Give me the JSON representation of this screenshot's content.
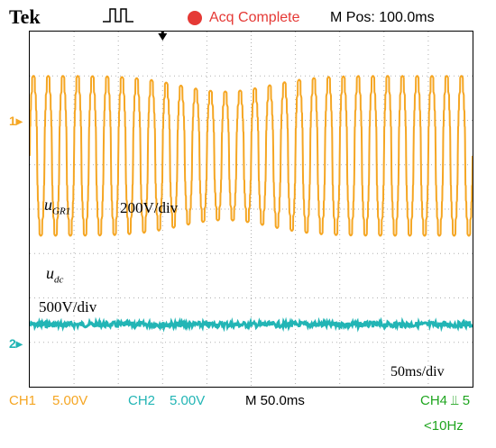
{
  "header": {
    "brand": "Tek",
    "trigger_icon": "trigger-pulse-icon",
    "acq_status": "Acq Complete",
    "m_pos": "M Pos: 100.0ms"
  },
  "colors": {
    "ch1": "#f5a623",
    "ch2": "#22b5b5",
    "status_red": "#e53935",
    "ch4_green": "#1fa51f",
    "grid": "#b0b0b0"
  },
  "channel_markers": {
    "ch1": "1",
    "ch2": "2"
  },
  "annotations": {
    "ugr1_main": "u",
    "ugr1_sub": "GR1",
    "ugr1_scale": "200V/div",
    "udc_main": "u",
    "udc_sub": "dc",
    "udc_scale": "500V/div",
    "time_scale": "50ms/div"
  },
  "footer": {
    "ch1_label": "CH1",
    "ch1_scale": "5.00V",
    "ch2_label": "CH2",
    "ch2_scale": "5.00V",
    "timebase": "M 50.0ms",
    "ch4_trigger": "CH4 ⫫ 5",
    "trig_freq": "<10Hz"
  },
  "chart_data": {
    "type": "line",
    "grid": {
      "x_divisions": 10,
      "y_divisions": 8,
      "on": true
    },
    "time_per_div_ms": 50,
    "time_range_ms": [
      0,
      500
    ],
    "series": [
      {
        "name": "u_GR1",
        "channel": "CH1",
        "scale": "200V/div",
        "offset_div": 5.2,
        "amplitude_div": 1.8,
        "amplitude_dip_div": 1.45,
        "dip_center_ms": 220,
        "cycles": 30,
        "waveform": "stepped-sine"
      },
      {
        "name": "u_dc",
        "channel": "CH2",
        "scale": "500V/div",
        "level_div": 1.4,
        "ripple_div": 0.03
      }
    ]
  }
}
